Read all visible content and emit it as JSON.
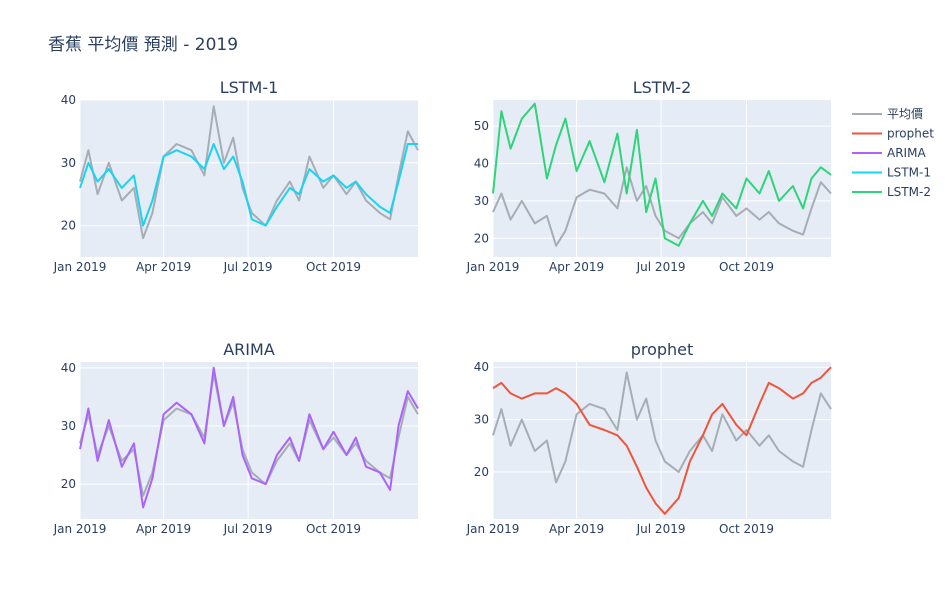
{
  "title": "香蕉 平均價 預測 - 2019",
  "colors": {
    "平均價": "#a6adb4",
    "prophet": "#ef553b",
    "ARIMA": "#ab63fa",
    "LSTM-1": "#19d3f3",
    "LSTM-2": "#2ed47a"
  },
  "legend": [
    "平均價",
    "prophet",
    "ARIMA",
    "LSTM-1",
    "LSTM-2"
  ],
  "x_ticks": [
    {
      "date": "2019-01-01",
      "label": "Jan 2019"
    },
    {
      "date": "2019-04-01",
      "label": "Apr 2019"
    },
    {
      "date": "2019-07-01",
      "label": "Jul 2019"
    },
    {
      "date": "2019-10-01",
      "label": "Oct 2019"
    }
  ],
  "chart_data": [
    {
      "type": "line",
      "title": "LSTM-1",
      "ylim": [
        15,
        40
      ],
      "y_ticks": [
        20,
        30,
        40
      ],
      "series": [
        {
          "name": "平均價",
          "x": [
            "2019-01-01",
            "2019-01-10",
            "2019-01-20",
            "2019-02-01",
            "2019-02-15",
            "2019-02-28",
            "2019-03-10",
            "2019-03-20",
            "2019-04-01",
            "2019-04-15",
            "2019-05-01",
            "2019-05-15",
            "2019-05-25",
            "2019-06-05",
            "2019-06-15",
            "2019-06-25",
            "2019-07-05",
            "2019-07-20",
            "2019-08-01",
            "2019-08-15",
            "2019-08-25",
            "2019-09-05",
            "2019-09-20",
            "2019-10-01",
            "2019-10-15",
            "2019-10-25",
            "2019-11-05",
            "2019-11-20",
            "2019-12-01",
            "2019-12-10",
            "2019-12-20",
            "2019-12-31"
          ],
          "values": [
            27,
            32,
            25,
            30,
            24,
            26,
            18,
            22,
            31,
            33,
            32,
            28,
            39,
            30,
            34,
            26,
            22,
            20,
            24,
            27,
            24,
            31,
            26,
            28,
            25,
            27,
            24,
            22,
            21,
            28,
            35,
            32
          ]
        },
        {
          "name": "LSTM-1",
          "x": [
            "2019-01-01",
            "2019-01-10",
            "2019-01-20",
            "2019-02-01",
            "2019-02-15",
            "2019-02-28",
            "2019-03-10",
            "2019-03-20",
            "2019-04-01",
            "2019-04-15",
            "2019-05-01",
            "2019-05-15",
            "2019-05-25",
            "2019-06-05",
            "2019-06-15",
            "2019-06-25",
            "2019-07-05",
            "2019-07-20",
            "2019-08-01",
            "2019-08-15",
            "2019-08-25",
            "2019-09-05",
            "2019-09-20",
            "2019-10-01",
            "2019-10-15",
            "2019-10-25",
            "2019-11-05",
            "2019-11-20",
            "2019-12-01",
            "2019-12-10",
            "2019-12-20",
            "2019-12-31"
          ],
          "values": [
            26,
            30,
            27,
            29,
            26,
            28,
            20,
            24,
            31,
            32,
            31,
            29,
            33,
            29,
            31,
            27,
            21,
            20,
            23,
            26,
            25,
            29,
            27,
            28,
            26,
            27,
            25,
            23,
            22,
            27,
            33,
            33
          ]
        }
      ]
    },
    {
      "type": "line",
      "title": "LSTM-2",
      "ylim": [
        15,
        57
      ],
      "y_ticks": [
        20,
        30,
        40,
        50
      ],
      "series": [
        {
          "name": "平均價",
          "x": [
            "2019-01-01",
            "2019-01-10",
            "2019-01-20",
            "2019-02-01",
            "2019-02-15",
            "2019-02-28",
            "2019-03-10",
            "2019-03-20",
            "2019-04-01",
            "2019-04-15",
            "2019-05-01",
            "2019-05-15",
            "2019-05-25",
            "2019-06-05",
            "2019-06-15",
            "2019-06-25",
            "2019-07-05",
            "2019-07-20",
            "2019-08-01",
            "2019-08-15",
            "2019-08-25",
            "2019-09-05",
            "2019-09-20",
            "2019-10-01",
            "2019-10-15",
            "2019-10-25",
            "2019-11-05",
            "2019-11-20",
            "2019-12-01",
            "2019-12-10",
            "2019-12-20",
            "2019-12-31"
          ],
          "values": [
            27,
            32,
            25,
            30,
            24,
            26,
            18,
            22,
            31,
            33,
            32,
            28,
            39,
            30,
            34,
            26,
            22,
            20,
            24,
            27,
            24,
            31,
            26,
            28,
            25,
            27,
            24,
            22,
            21,
            28,
            35,
            32
          ]
        },
        {
          "name": "LSTM-2",
          "x": [
            "2019-01-01",
            "2019-01-10",
            "2019-01-20",
            "2019-02-01",
            "2019-02-15",
            "2019-02-28",
            "2019-03-10",
            "2019-03-20",
            "2019-04-01",
            "2019-04-15",
            "2019-05-01",
            "2019-05-15",
            "2019-05-25",
            "2019-06-05",
            "2019-06-15",
            "2019-06-25",
            "2019-07-05",
            "2019-07-20",
            "2019-08-01",
            "2019-08-15",
            "2019-08-25",
            "2019-09-05",
            "2019-09-20",
            "2019-10-01",
            "2019-10-15",
            "2019-10-25",
            "2019-11-05",
            "2019-11-20",
            "2019-12-01",
            "2019-12-10",
            "2019-12-20",
            "2019-12-31"
          ],
          "values": [
            32,
            54,
            44,
            52,
            56,
            36,
            45,
            52,
            38,
            46,
            35,
            48,
            32,
            49,
            27,
            36,
            20,
            18,
            24,
            30,
            26,
            32,
            28,
            36,
            32,
            38,
            30,
            34,
            28,
            36,
            39,
            37
          ]
        }
      ]
    },
    {
      "type": "line",
      "title": "ARIMA",
      "ylim": [
        14,
        41
      ],
      "y_ticks": [
        20,
        30,
        40
      ],
      "series": [
        {
          "name": "平均價",
          "x": [
            "2019-01-01",
            "2019-01-10",
            "2019-01-20",
            "2019-02-01",
            "2019-02-15",
            "2019-02-28",
            "2019-03-10",
            "2019-03-20",
            "2019-04-01",
            "2019-04-15",
            "2019-05-01",
            "2019-05-15",
            "2019-05-25",
            "2019-06-05",
            "2019-06-15",
            "2019-06-25",
            "2019-07-05",
            "2019-07-20",
            "2019-08-01",
            "2019-08-15",
            "2019-08-25",
            "2019-09-05",
            "2019-09-20",
            "2019-10-01",
            "2019-10-15",
            "2019-10-25",
            "2019-11-05",
            "2019-11-20",
            "2019-12-01",
            "2019-12-10",
            "2019-12-20",
            "2019-12-31"
          ],
          "values": [
            27,
            32,
            25,
            30,
            24,
            26,
            18,
            22,
            31,
            33,
            32,
            28,
            39,
            30,
            34,
            26,
            22,
            20,
            24,
            27,
            24,
            31,
            26,
            28,
            25,
            27,
            24,
            22,
            21,
            28,
            35,
            32
          ]
        },
        {
          "name": "ARIMA",
          "x": [
            "2019-01-01",
            "2019-01-10",
            "2019-01-20",
            "2019-02-01",
            "2019-02-15",
            "2019-02-28",
            "2019-03-10",
            "2019-03-20",
            "2019-04-01",
            "2019-04-15",
            "2019-05-01",
            "2019-05-15",
            "2019-05-25",
            "2019-06-05",
            "2019-06-15",
            "2019-06-25",
            "2019-07-05",
            "2019-07-20",
            "2019-08-01",
            "2019-08-15",
            "2019-08-25",
            "2019-09-05",
            "2019-09-20",
            "2019-10-01",
            "2019-10-15",
            "2019-10-25",
            "2019-11-05",
            "2019-11-20",
            "2019-12-01",
            "2019-12-10",
            "2019-12-20",
            "2019-12-31"
          ],
          "values": [
            26,
            33,
            24,
            31,
            23,
            27,
            16,
            21,
            32,
            34,
            32,
            27,
            40,
            30,
            35,
            25,
            21,
            20,
            25,
            28,
            24,
            32,
            26,
            29,
            25,
            28,
            23,
            22,
            19,
            30,
            36,
            33
          ]
        }
      ]
    },
    {
      "type": "line",
      "title": "prophet",
      "ylim": [
        11,
        41
      ],
      "y_ticks": [
        20,
        30,
        40
      ],
      "series": [
        {
          "name": "平均價",
          "x": [
            "2019-01-01",
            "2019-01-10",
            "2019-01-20",
            "2019-02-01",
            "2019-02-15",
            "2019-02-28",
            "2019-03-10",
            "2019-03-20",
            "2019-04-01",
            "2019-04-15",
            "2019-05-01",
            "2019-05-15",
            "2019-05-25",
            "2019-06-05",
            "2019-06-15",
            "2019-06-25",
            "2019-07-05",
            "2019-07-20",
            "2019-08-01",
            "2019-08-15",
            "2019-08-25",
            "2019-09-05",
            "2019-09-20",
            "2019-10-01",
            "2019-10-15",
            "2019-10-25",
            "2019-11-05",
            "2019-11-20",
            "2019-12-01",
            "2019-12-10",
            "2019-12-20",
            "2019-12-31"
          ],
          "values": [
            27,
            32,
            25,
            30,
            24,
            26,
            18,
            22,
            31,
            33,
            32,
            28,
            39,
            30,
            34,
            26,
            22,
            20,
            24,
            27,
            24,
            31,
            26,
            28,
            25,
            27,
            24,
            22,
            21,
            28,
            35,
            32
          ]
        },
        {
          "name": "prophet",
          "x": [
            "2019-01-01",
            "2019-01-10",
            "2019-01-20",
            "2019-02-01",
            "2019-02-15",
            "2019-02-28",
            "2019-03-10",
            "2019-03-20",
            "2019-04-01",
            "2019-04-15",
            "2019-05-01",
            "2019-05-15",
            "2019-05-25",
            "2019-06-05",
            "2019-06-15",
            "2019-06-25",
            "2019-07-05",
            "2019-07-20",
            "2019-08-01",
            "2019-08-15",
            "2019-08-25",
            "2019-09-05",
            "2019-09-20",
            "2019-10-01",
            "2019-10-15",
            "2019-10-25",
            "2019-11-05",
            "2019-11-20",
            "2019-12-01",
            "2019-12-10",
            "2019-12-20",
            "2019-12-31"
          ],
          "values": [
            36,
            37,
            35,
            34,
            35,
            35,
            36,
            35,
            33,
            29,
            28,
            27,
            25,
            21,
            17,
            14,
            12,
            15,
            22,
            27,
            31,
            33,
            29,
            27,
            33,
            37,
            36,
            34,
            35,
            37,
            38,
            40
          ]
        }
      ]
    }
  ]
}
